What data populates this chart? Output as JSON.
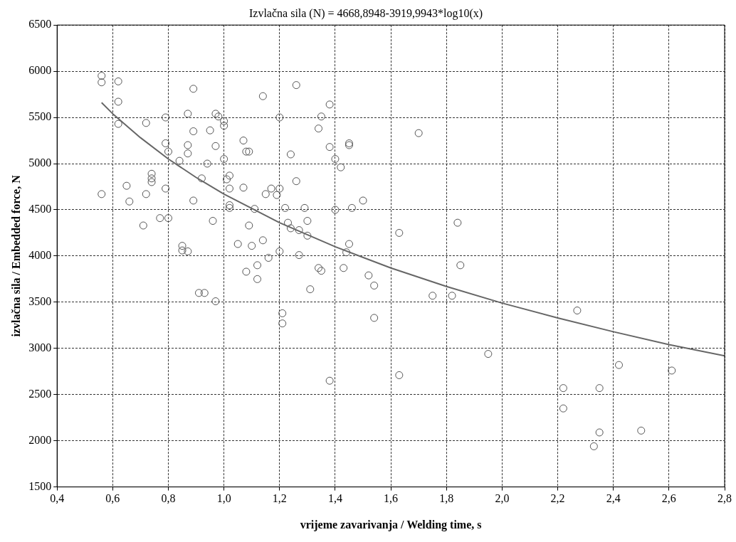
{
  "chart_data": {
    "type": "scatter",
    "title": "Izvlačna sila (N) = 4668,8948-3919,9943*log10(x)",
    "xlabel": "vrijeme zavarivanja / Welding time, s",
    "ylabel": "izvlačna sila / Embedded force, N",
    "xlim": [
      0.4,
      2.8
    ],
    "ylim": [
      1500,
      6500
    ],
    "xticks": [
      {
        "value": 0.4,
        "label": "0,4"
      },
      {
        "value": 0.6,
        "label": "0,6"
      },
      {
        "value": 0.8,
        "label": "0,8"
      },
      {
        "value": 1.0,
        "label": "1,0"
      },
      {
        "value": 1.2,
        "label": "1,2"
      },
      {
        "value": 1.4,
        "label": "1,4"
      },
      {
        "value": 1.6,
        "label": "1,6"
      },
      {
        "value": 1.8,
        "label": "1,8"
      },
      {
        "value": 2.0,
        "label": "2,0"
      },
      {
        "value": 2.2,
        "label": "2,2"
      },
      {
        "value": 2.4,
        "label": "2,4"
      },
      {
        "value": 2.6,
        "label": "2,6"
      },
      {
        "value": 2.8,
        "label": "2,8"
      }
    ],
    "yticks": [
      1500,
      2000,
      2500,
      3000,
      3500,
      4000,
      4500,
      5000,
      5500,
      6000,
      6500
    ],
    "grid": true,
    "legend": false,
    "marker": "circle",
    "series": [
      {
        "color": "#555555",
        "x": [
          0.56,
          0.56,
          0.56,
          0.62,
          0.62,
          0.62,
          0.65,
          0.66,
          0.71,
          0.72,
          0.72,
          0.74,
          0.74,
          0.74,
          0.77,
          0.79,
          0.79,
          0.79,
          0.8,
          0.8,
          0.84,
          0.85,
          0.85,
          0.87,
          0.87,
          0.87,
          0.87,
          0.89,
          0.89,
          0.89,
          0.91,
          0.93,
          0.92,
          0.94,
          0.95,
          0.96,
          0.97,
          0.97,
          0.97,
          0.98,
          1.0,
          1.0,
          1.0,
          1.01,
          1.02,
          1.02,
          1.02,
          1.02,
          1.05,
          1.07,
          1.07,
          1.08,
          1.09,
          1.08,
          1.09,
          1.1,
          1.11,
          1.12,
          1.12,
          1.14,
          1.14,
          1.15,
          1.16,
          1.17,
          1.19,
          1.2,
          1.2,
          1.2,
          1.21,
          1.21,
          1.22,
          1.23,
          1.24,
          1.24,
          1.26,
          1.26,
          1.27,
          1.27,
          1.29,
          1.3,
          1.3,
          1.31,
          1.34,
          1.34,
          1.35,
          1.35,
          1.38,
          1.38,
          1.38,
          1.4,
          1.4,
          1.42,
          1.43,
          1.44,
          1.45,
          1.45,
          1.45,
          1.46,
          1.5,
          1.52,
          1.54,
          1.54,
          1.63,
          1.63,
          1.7,
          1.75,
          1.82,
          1.84,
          1.85,
          1.95,
          2.22,
          2.22,
          2.27,
          2.33,
          2.35,
          2.35,
          2.42,
          2.5,
          2.61
        ],
        "values": [
          5950,
          5880,
          4670,
          5890,
          5670,
          5430,
          4760,
          4590,
          4330,
          5440,
          4670,
          4890,
          4840,
          4800,
          4410,
          5500,
          5220,
          4730,
          5130,
          4410,
          5030,
          4110,
          4060,
          5540,
          5200,
          5110,
          4050,
          5810,
          5350,
          4600,
          3600,
          3600,
          4840,
          5000,
          5360,
          4380,
          5540,
          5190,
          3510,
          5510,
          5460,
          5410,
          5050,
          4830,
          4870,
          4730,
          4550,
          4520,
          4130,
          5250,
          4740,
          5130,
          5130,
          3830,
          4330,
          4110,
          4510,
          3900,
          3750,
          5730,
          4170,
          4670,
          3980,
          4730,
          4660,
          5500,
          4730,
          4050,
          3380,
          3270,
          4520,
          4360,
          5100,
          4300,
          5850,
          4810,
          4280,
          4010,
          4520,
          4380,
          4220,
          3640,
          5380,
          3870,
          5510,
          3840,
          5640,
          5180,
          2650,
          5050,
          4500,
          4960,
          3870,
          4040,
          5220,
          5200,
          4130,
          4520,
          4600,
          3790,
          3680,
          3330,
          4250,
          2710,
          5330,
          3570,
          3570,
          4360,
          3900,
          2940,
          2570,
          2350,
          3410,
          1940,
          2570,
          2090,
          2820,
          2110,
          2760
        ]
      },
      {
        "type": "line",
        "color": "#666666",
        "marker": "none",
        "x": [
          0.56,
          0.6,
          0.7,
          0.8,
          0.9,
          1.0,
          1.2,
          1.4,
          1.6,
          1.8,
          2.0,
          2.2,
          2.4,
          2.6,
          2.8
        ],
        "values": [
          5660,
          5540,
          5280,
          5050,
          4850,
          4670,
          4360,
          4100,
          3870,
          3670,
          3490,
          3330,
          3180,
          3040,
          2920
        ]
      }
    ]
  }
}
